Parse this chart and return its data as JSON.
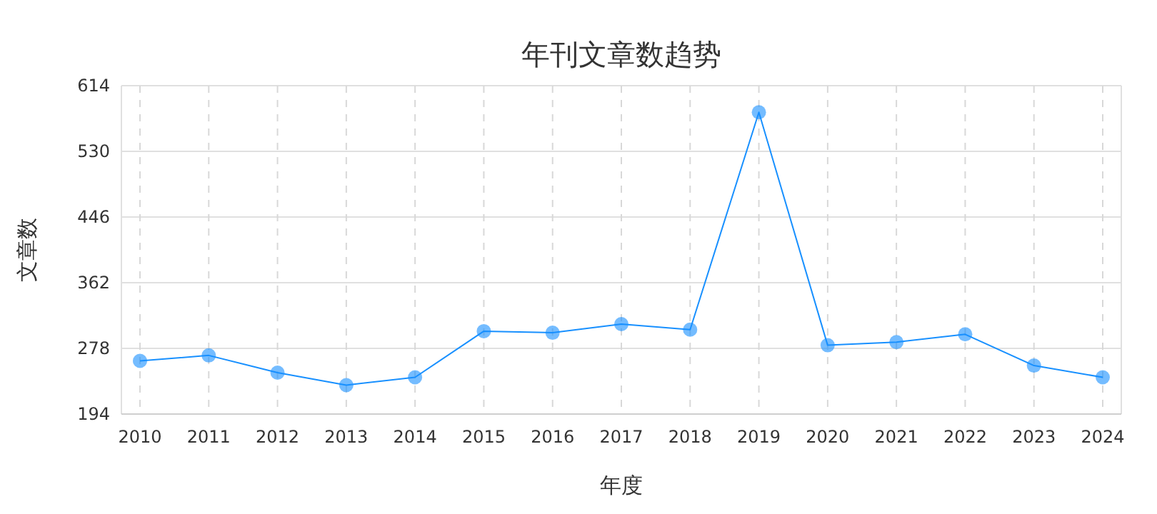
{
  "chart_data": {
    "type": "line",
    "title": "年刊文章数趋势",
    "xlabel": "年度",
    "ylabel": "文章数",
    "categories": [
      "2010",
      "2011",
      "2012",
      "2013",
      "2014",
      "2015",
      "2016",
      "2017",
      "2018",
      "2019",
      "2020",
      "2021",
      "2022",
      "2023",
      "2024"
    ],
    "series": [
      {
        "color": "#1890ff",
        "values": [
          262,
          269,
          247,
          231,
          241,
          300,
          298,
          309,
          302,
          580,
          282,
          286,
          296,
          256,
          241
        ]
      }
    ],
    "ylim": [
      194,
      614
    ],
    "yticks": [
      194,
      278,
      362,
      446,
      530,
      614
    ],
    "grid": true,
    "marker": "circle",
    "line_style": "solid"
  }
}
